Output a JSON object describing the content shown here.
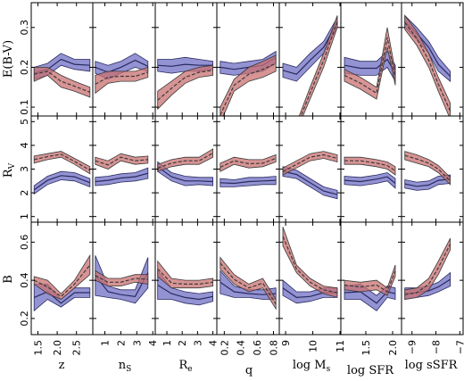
{
  "colors": {
    "blue_band": "#6f6fc4",
    "blue_line": "#2a2a60",
    "red_band": "#c97070",
    "red_line": "#3a3a3a",
    "axes": "#000000"
  },
  "figure": {
    "row_labels": [
      "E(B-V)",
      "R",
      "B"
    ],
    "row_label_subscripts": [
      "",
      "V",
      ""
    ],
    "column_labels": [
      "z",
      "n",
      "R",
      "q",
      "log M",
      "log SFR",
      "log sSFR"
    ],
    "column_label_subscripts": [
      "",
      "S",
      "e",
      "",
      "s",
      "",
      ""
    ]
  },
  "chart_data": {
    "type": "line",
    "layout": "grid 3 rows x 7 columns, shared y per row",
    "grid": false,
    "rows": [
      {
        "quantity": "E(B-V)",
        "ylim": [
          0.08,
          0.36
        ],
        "yticks": [
          0.1,
          0.2,
          0.3
        ]
      },
      {
        "quantity": "R_V",
        "ylim": [
          0.8,
          5.2
        ],
        "yticks": [
          1,
          2,
          3,
          4,
          5
        ]
      },
      {
        "quantity": "B",
        "ylim": [
          0.12,
          0.7
        ],
        "yticks": [
          0.2,
          0.4,
          0.6
        ]
      }
    ],
    "columns": [
      {
        "xlabel": "z",
        "xlim": [
          1.35,
          2.9
        ],
        "xticks": [
          1.5,
          2.0,
          2.5
        ],
        "xtick_labels": [
          "1.5",
          "2.0",
          "2.5"
        ],
        "x": [
          1.4,
          1.75,
          2.1,
          2.45,
          2.85
        ]
      },
      {
        "xlabel": "n_S",
        "xlim": [
          0.3,
          4.1
        ],
        "xticks": [
          1,
          2,
          3,
          4
        ],
        "xtick_labels": [
          "1",
          "2",
          "3",
          "4"
        ],
        "x": [
          0.4,
          1.2,
          2.0,
          2.9,
          3.7
        ]
      },
      {
        "xlabel": "R_e",
        "xlim": [
          0.3,
          4.2
        ],
        "xticks": [
          1,
          2,
          3,
          4
        ],
        "xtick_labels": [
          "1",
          "2",
          "3",
          "4"
        ],
        "x": [
          0.4,
          1.3,
          2.2,
          3.1,
          4.0
        ]
      },
      {
        "xlabel": "q",
        "xlim": [
          0.12,
          0.86
        ],
        "xticks": [
          0.2,
          0.4,
          0.6,
          0.8
        ],
        "xtick_labels": [
          "0.2",
          "0.4",
          "0.6",
          "0.8"
        ],
        "x": [
          0.15,
          0.32,
          0.5,
          0.67,
          0.83
        ]
      },
      {
        "xlabel": "log M_s",
        "xlim": [
          8.8,
          11.0
        ],
        "xticks": [
          9,
          10,
          11
        ],
        "xtick_labels": [
          "9",
          "10",
          "11"
        ],
        "x": [
          8.9,
          9.4,
          9.9,
          10.4,
          10.9
        ]
      },
      {
        "xlabel": "log SFR",
        "xlim": [
          1.05,
          2.15
        ],
        "xticks": [
          1.5,
          2.0
        ],
        "xtick_labels": [
          "1.5",
          "2.0"
        ],
        "x": [
          1.1,
          1.4,
          1.7,
          1.9,
          2.05
        ]
      },
      {
        "xlabel": "log sSFR",
        "xlim": [
          -9.4,
          -6.9
        ],
        "xticks": [
          -9,
          -8,
          -7
        ],
        "xtick_labels": [
          "−9",
          "−8",
          "−7"
        ],
        "x": [
          -9.3,
          -8.8,
          -8.3,
          -7.9,
          -7.4
        ]
      }
    ],
    "series_colors": [
      "blue",
      "red"
    ],
    "panels": [
      [
        {
          "blue": [
            [
              0.17,
              0.2
            ],
            [
              0.18,
              0.21
            ],
            [
              0.205,
              0.235
            ],
            [
              0.195,
              0.22
            ],
            [
              0.19,
              0.22
            ]
          ],
          "red": [
            [
              0.165,
              0.2
            ],
            [
              0.18,
              0.2
            ],
            [
              0.15,
              0.18
            ],
            [
              0.14,
              0.165
            ],
            [
              0.125,
              0.15
            ]
          ]
        },
        {
          "blue": [
            [
              0.185,
              0.215
            ],
            [
              0.17,
              0.205
            ],
            [
              0.185,
              0.215
            ],
            [
              0.2,
              0.235
            ],
            [
              0.19,
              0.215
            ]
          ],
          "red": [
            [
              0.135,
              0.18
            ],
            [
              0.16,
              0.19
            ],
            [
              0.165,
              0.19
            ],
            [
              0.165,
              0.19
            ],
            [
              0.175,
              0.2
            ]
          ]
        },
        {
          "blue": [
            [
              0.19,
              0.22
            ],
            [
              0.185,
              0.22
            ],
            [
              0.19,
              0.225
            ],
            [
              0.19,
              0.22
            ],
            [
              0.195,
              0.215
            ]
          ],
          "red": [
            [
              0.095,
              0.14
            ],
            [
              0.13,
              0.165
            ],
            [
              0.16,
              0.19
            ],
            [
              0.175,
              0.2
            ],
            [
              0.18,
              0.205
            ]
          ]
        },
        {
          "blue": [
            [
              0.185,
              0.215
            ],
            [
              0.18,
              0.21
            ],
            [
              0.185,
              0.215
            ],
            [
              0.19,
              0.22
            ],
            [
              0.21,
              0.24
            ]
          ],
          "red": [
            [
              0.06,
              0.1
            ],
            [
              0.14,
              0.17
            ],
            [
              0.165,
              0.2
            ],
            [
              0.175,
              0.215
            ],
            [
              0.19,
              0.23
            ]
          ]
        },
        {
          "blue": [
            [
              0.175,
              0.21
            ],
            [
              0.165,
              0.2
            ],
            [
              0.2,
              0.235
            ],
            [
              0.235,
              0.265
            ],
            [
              0.3,
              0.325
            ]
          ],
          "red": [
            [
              0.0,
              0.0
            ],
            [
              0.04,
              0.06
            ],
            [
              0.12,
              0.15
            ],
            [
              0.2,
              0.235
            ],
            [
              0.3,
              0.33
            ]
          ]
        },
        {
          "blue": [
            [
              0.185,
              0.225
            ],
            [
              0.18,
              0.215
            ],
            [
              0.18,
              0.215
            ],
            [
              0.2,
              0.24
            ],
            [
              0.165,
              0.205
            ]
          ],
          "red": [
            [
              0.165,
              0.195
            ],
            [
              0.145,
              0.175
            ],
            [
              0.12,
              0.15
            ],
            [
              0.25,
              0.3
            ],
            [
              0.155,
              0.19
            ]
          ]
        },
        {
          "blue": [
            [
              0.3,
              0.33
            ],
            [
              0.27,
              0.3
            ],
            [
              0.235,
              0.265
            ],
            [
              0.19,
              0.225
            ],
            [
              0.165,
              0.19
            ]
          ],
          "red": [
            [
              0.295,
              0.33
            ],
            [
              0.255,
              0.29
            ],
            [
              0.2,
              0.235
            ],
            [
              0.14,
              0.175
            ],
            [
              0.07,
              0.11
            ]
          ]
        }
      ],
      [
        {
          "blue": [
            [
              1.95,
              2.3
            ],
            [
              2.35,
              2.7
            ],
            [
              2.55,
              2.9
            ],
            [
              2.5,
              2.85
            ],
            [
              2.25,
              2.6
            ]
          ],
          "red": [
            [
              3.25,
              3.55
            ],
            [
              3.4,
              3.65
            ],
            [
              3.5,
              3.75
            ],
            [
              3.2,
              3.45
            ],
            [
              2.8,
              3.1
            ]
          ]
        },
        {
          "blue": [
            [
              2.3,
              2.65
            ],
            [
              2.35,
              2.7
            ],
            [
              2.45,
              2.8
            ],
            [
              2.5,
              2.85
            ],
            [
              2.6,
              3.05
            ]
          ],
          "red": [
            [
              3.2,
              3.5
            ],
            [
              3.0,
              3.35
            ],
            [
              3.35,
              3.65
            ],
            [
              3.2,
              3.5
            ],
            [
              3.25,
              3.55
            ]
          ]
        },
        {
          "blue": [
            [
              2.9,
              3.3
            ],
            [
              2.5,
              2.85
            ],
            [
              2.3,
              2.7
            ],
            [
              2.35,
              2.65
            ],
            [
              2.3,
              2.65
            ]
          ],
          "red": [
            [
              2.9,
              3.2
            ],
            [
              3.1,
              3.4
            ],
            [
              3.2,
              3.5
            ],
            [
              3.2,
              3.5
            ],
            [
              3.5,
              3.85
            ]
          ]
        },
        {
          "blue": [
            [
              2.25,
              2.6
            ],
            [
              2.25,
              2.55
            ],
            [
              2.3,
              2.65
            ],
            [
              2.35,
              2.65
            ],
            [
              2.35,
              2.7
            ]
          ],
          "red": [
            [
              2.9,
              3.25
            ],
            [
              3.2,
              3.5
            ],
            [
              3.05,
              3.4
            ],
            [
              3.1,
              3.4
            ],
            [
              3.3,
              3.6
            ]
          ]
        },
        {
          "blue": [
            [
              2.7,
              3.1
            ],
            [
              2.6,
              2.95
            ],
            [
              2.25,
              2.6
            ],
            [
              1.9,
              2.25
            ],
            [
              1.75,
              2.1
            ]
          ],
          "red": [
            [
              2.75,
              3.05
            ],
            [
              3.05,
              3.35
            ],
            [
              3.35,
              3.65
            ],
            [
              3.45,
              3.75
            ],
            [
              3.3,
              3.6
            ]
          ]
        },
        {
          "blue": [
            [
              2.35,
              2.7
            ],
            [
              2.3,
              2.65
            ],
            [
              2.4,
              2.75
            ],
            [
              2.5,
              2.85
            ],
            [
              2.2,
              2.6
            ]
          ],
          "red": [
            [
              3.2,
              3.5
            ],
            [
              3.2,
              3.5
            ],
            [
              3.1,
              3.4
            ],
            [
              3.0,
              3.3
            ],
            [
              2.75,
              3.1
            ]
          ]
        },
        {
          "blue": [
            [
              2.2,
              2.55
            ],
            [
              2.1,
              2.45
            ],
            [
              2.15,
              2.5
            ],
            [
              2.35,
              2.7
            ],
            [
              2.4,
              2.75
            ]
          ],
          "red": [
            [
              3.4,
              3.75
            ],
            [
              3.25,
              3.6
            ],
            [
              3.1,
              3.4
            ],
            [
              2.85,
              3.15
            ],
            [
              2.35,
              2.65
            ]
          ]
        }
      ],
      [
        {
          "blue": [
            [
              0.24,
              0.38
            ],
            [
              0.3,
              0.38
            ],
            [
              0.26,
              0.3
            ],
            [
              0.31,
              0.36
            ],
            [
              0.31,
              0.36
            ]
          ],
          "red": [
            [
              0.38,
              0.42
            ],
            [
              0.33,
              0.4
            ],
            [
              0.3,
              0.33
            ],
            [
              0.36,
              0.4
            ],
            [
              0.43,
              0.53
            ]
          ]
        },
        {
          "blue": [
            [
              0.32,
              0.53
            ],
            [
              0.31,
              0.37
            ],
            [
              0.3,
              0.35
            ],
            [
              0.28,
              0.35
            ],
            [
              0.36,
              0.52
            ]
          ],
          "red": [
            [
              0.4,
              0.45
            ],
            [
              0.37,
              0.41
            ],
            [
              0.37,
              0.41
            ],
            [
              0.39,
              0.43
            ],
            [
              0.38,
              0.43
            ]
          ]
        },
        {
          "blue": [
            [
              0.3,
              0.45
            ],
            [
              0.3,
              0.36
            ],
            [
              0.28,
              0.34
            ],
            [
              0.27,
              0.33
            ],
            [
              0.29,
              0.34
            ]
          ],
          "red": [
            [
              0.42,
              0.5
            ],
            [
              0.36,
              0.41
            ],
            [
              0.36,
              0.4
            ],
            [
              0.36,
              0.4
            ],
            [
              0.37,
              0.41
            ]
          ]
        },
        {
          "blue": [
            [
              0.33,
              0.45
            ],
            [
              0.31,
              0.37
            ],
            [
              0.31,
              0.35
            ],
            [
              0.3,
              0.35
            ],
            [
              0.3,
              0.36
            ]
          ],
          "red": [
            [
              0.46,
              0.52
            ],
            [
              0.38,
              0.43
            ],
            [
              0.34,
              0.38
            ],
            [
              0.36,
              0.41
            ],
            [
              0.25,
              0.3
            ]
          ]
        },
        {
          "blue": [
            [
              0.32,
              0.4
            ],
            [
              0.28,
              0.34
            ],
            [
              0.29,
              0.34
            ],
            [
              0.31,
              0.36
            ],
            [
              0.31,
              0.36
            ]
          ],
          "red": [
            [
              0.58,
              0.68
            ],
            [
              0.44,
              0.48
            ],
            [
              0.37,
              0.41
            ],
            [
              0.33,
              0.37
            ],
            [
              0.31,
              0.36
            ]
          ]
        },
        {
          "blue": [
            [
              0.3,
              0.37
            ],
            [
              0.3,
              0.38
            ],
            [
              0.24,
              0.32
            ],
            [
              0.31,
              0.37
            ],
            [
              0.3,
              0.36
            ]
          ],
          "red": [
            [
              0.35,
              0.4
            ],
            [
              0.34,
              0.39
            ],
            [
              0.35,
              0.4
            ],
            [
              0.32,
              0.36
            ],
            [
              0.42,
              0.48
            ]
          ]
        },
        {
          "blue": [
            [
              0.3,
              0.36
            ],
            [
              0.31,
              0.36
            ],
            [
              0.32,
              0.37
            ],
            [
              0.34,
              0.39
            ],
            [
              0.37,
              0.44
            ]
          ],
          "red": [
            [
              0.3,
              0.35
            ],
            [
              0.31,
              0.36
            ],
            [
              0.35,
              0.41
            ],
            [
              0.43,
              0.5
            ],
            [
              0.56,
              0.62
            ]
          ]
        }
      ]
    ]
  }
}
